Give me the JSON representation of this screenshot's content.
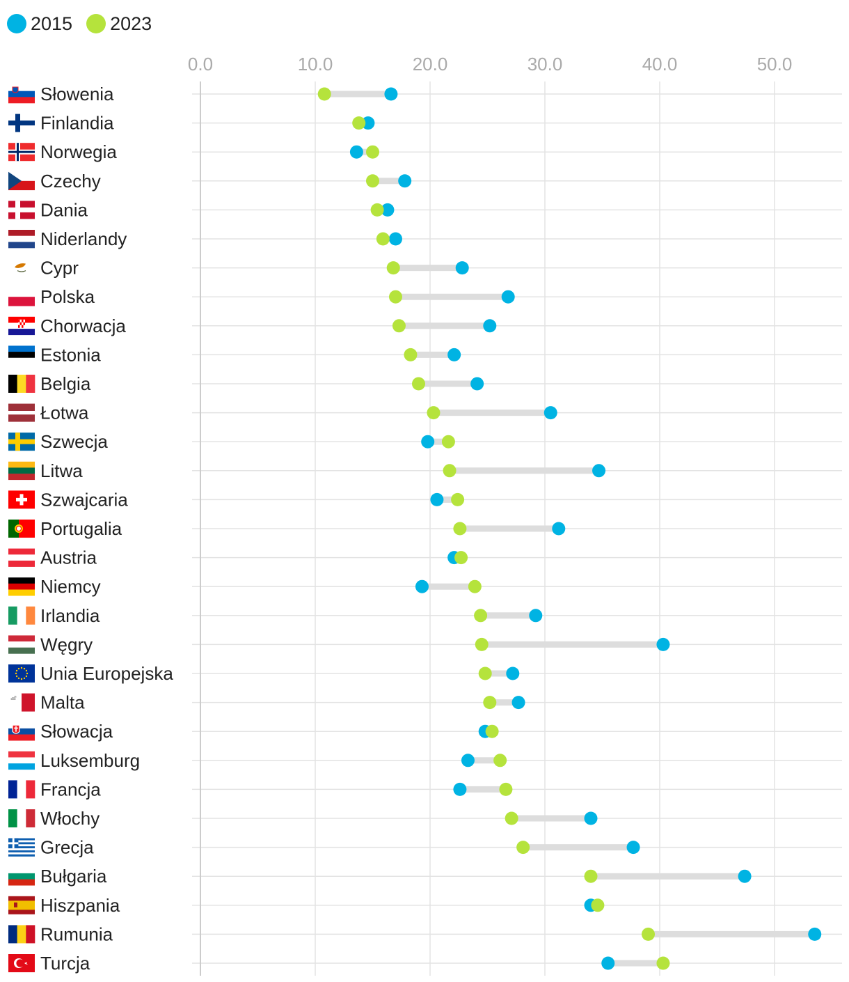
{
  "chart_data": {
    "type": "dumbbell",
    "title": "",
    "xlabel": "",
    "ylabel": "",
    "xlim": [
      0,
      55
    ],
    "x_ticks": [
      "0.0",
      "10.0",
      "20.0",
      "30.0",
      "40.0",
      "50.0"
    ],
    "legend": [
      {
        "name": "2015",
        "color": "#00b3e3"
      },
      {
        "name": "2023",
        "color": "#b5e33c"
      }
    ],
    "rows": [
      {
        "country": "Słowenia",
        "flag": "slovenia",
        "v2015": 16.6,
        "v2023": 10.8
      },
      {
        "country": "Finlandia",
        "flag": "finland",
        "v2015": 14.6,
        "v2023": 13.8
      },
      {
        "country": "Norwegia",
        "flag": "norway",
        "v2015": 13.6,
        "v2023": 15.0
      },
      {
        "country": "Czechy",
        "flag": "czechia",
        "v2015": 17.8,
        "v2023": 15.0
      },
      {
        "country": "Dania",
        "flag": "denmark",
        "v2015": 16.3,
        "v2023": 15.4
      },
      {
        "country": "Niderlandy",
        "flag": "netherlands",
        "v2015": 17.0,
        "v2023": 15.9
      },
      {
        "country": "Cypr",
        "flag": "cyprus",
        "v2015": 22.8,
        "v2023": 16.8
      },
      {
        "country": "Polska",
        "flag": "poland",
        "v2015": 26.8,
        "v2023": 17.0
      },
      {
        "country": "Chorwacja",
        "flag": "croatia",
        "v2015": 25.2,
        "v2023": 17.3
      },
      {
        "country": "Estonia",
        "flag": "estonia",
        "v2015": 22.1,
        "v2023": 18.3
      },
      {
        "country": "Belgia",
        "flag": "belgium",
        "v2015": 24.1,
        "v2023": 19.0
      },
      {
        "country": "Łotwa",
        "flag": "latvia",
        "v2015": 30.5,
        "v2023": 20.3
      },
      {
        "country": "Szwecja",
        "flag": "sweden",
        "v2015": 19.8,
        "v2023": 21.6
      },
      {
        "country": "Litwa",
        "flag": "lithuania",
        "v2015": 34.7,
        "v2023": 21.7
      },
      {
        "country": "Szwajcaria",
        "flag": "switzerland",
        "v2015": 20.6,
        "v2023": 22.4
      },
      {
        "country": "Portugalia",
        "flag": "portugal",
        "v2015": 31.2,
        "v2023": 22.6
      },
      {
        "country": "Austria",
        "flag": "austria",
        "v2015": 22.1,
        "v2023": 22.7
      },
      {
        "country": "Niemcy",
        "flag": "germany",
        "v2015": 19.3,
        "v2023": 23.9
      },
      {
        "country": "Irlandia",
        "flag": "ireland",
        "v2015": 29.2,
        "v2023": 24.4
      },
      {
        "country": "Węgry",
        "flag": "hungary",
        "v2015": 40.3,
        "v2023": 24.5
      },
      {
        "country": "Unia Europejska",
        "flag": "eu",
        "v2015": 27.2,
        "v2023": 24.8
      },
      {
        "country": "Malta",
        "flag": "malta",
        "v2015": 27.7,
        "v2023": 25.2
      },
      {
        "country": "Słowacja",
        "flag": "slovakia",
        "v2015": 24.8,
        "v2023": 25.4
      },
      {
        "country": "Luksemburg",
        "flag": "luxembourg",
        "v2015": 23.3,
        "v2023": 26.1
      },
      {
        "country": "Francja",
        "flag": "france",
        "v2015": 22.6,
        "v2023": 26.6
      },
      {
        "country": "Włochy",
        "flag": "italy",
        "v2015": 34.0,
        "v2023": 27.1
      },
      {
        "country": "Grecja",
        "flag": "greece",
        "v2015": 37.7,
        "v2023": 28.1
      },
      {
        "country": "Bułgaria",
        "flag": "bulgaria",
        "v2015": 47.4,
        "v2023": 34.0
      },
      {
        "country": "Hiszpania",
        "flag": "spain",
        "v2015": 34.0,
        "v2023": 34.6
      },
      {
        "country": "Rumunia",
        "flag": "romania",
        "v2015": 53.5,
        "v2023": 39.0
      },
      {
        "country": "Turcja",
        "flag": "turkey",
        "v2015": 35.5,
        "v2023": 40.3
      }
    ]
  }
}
